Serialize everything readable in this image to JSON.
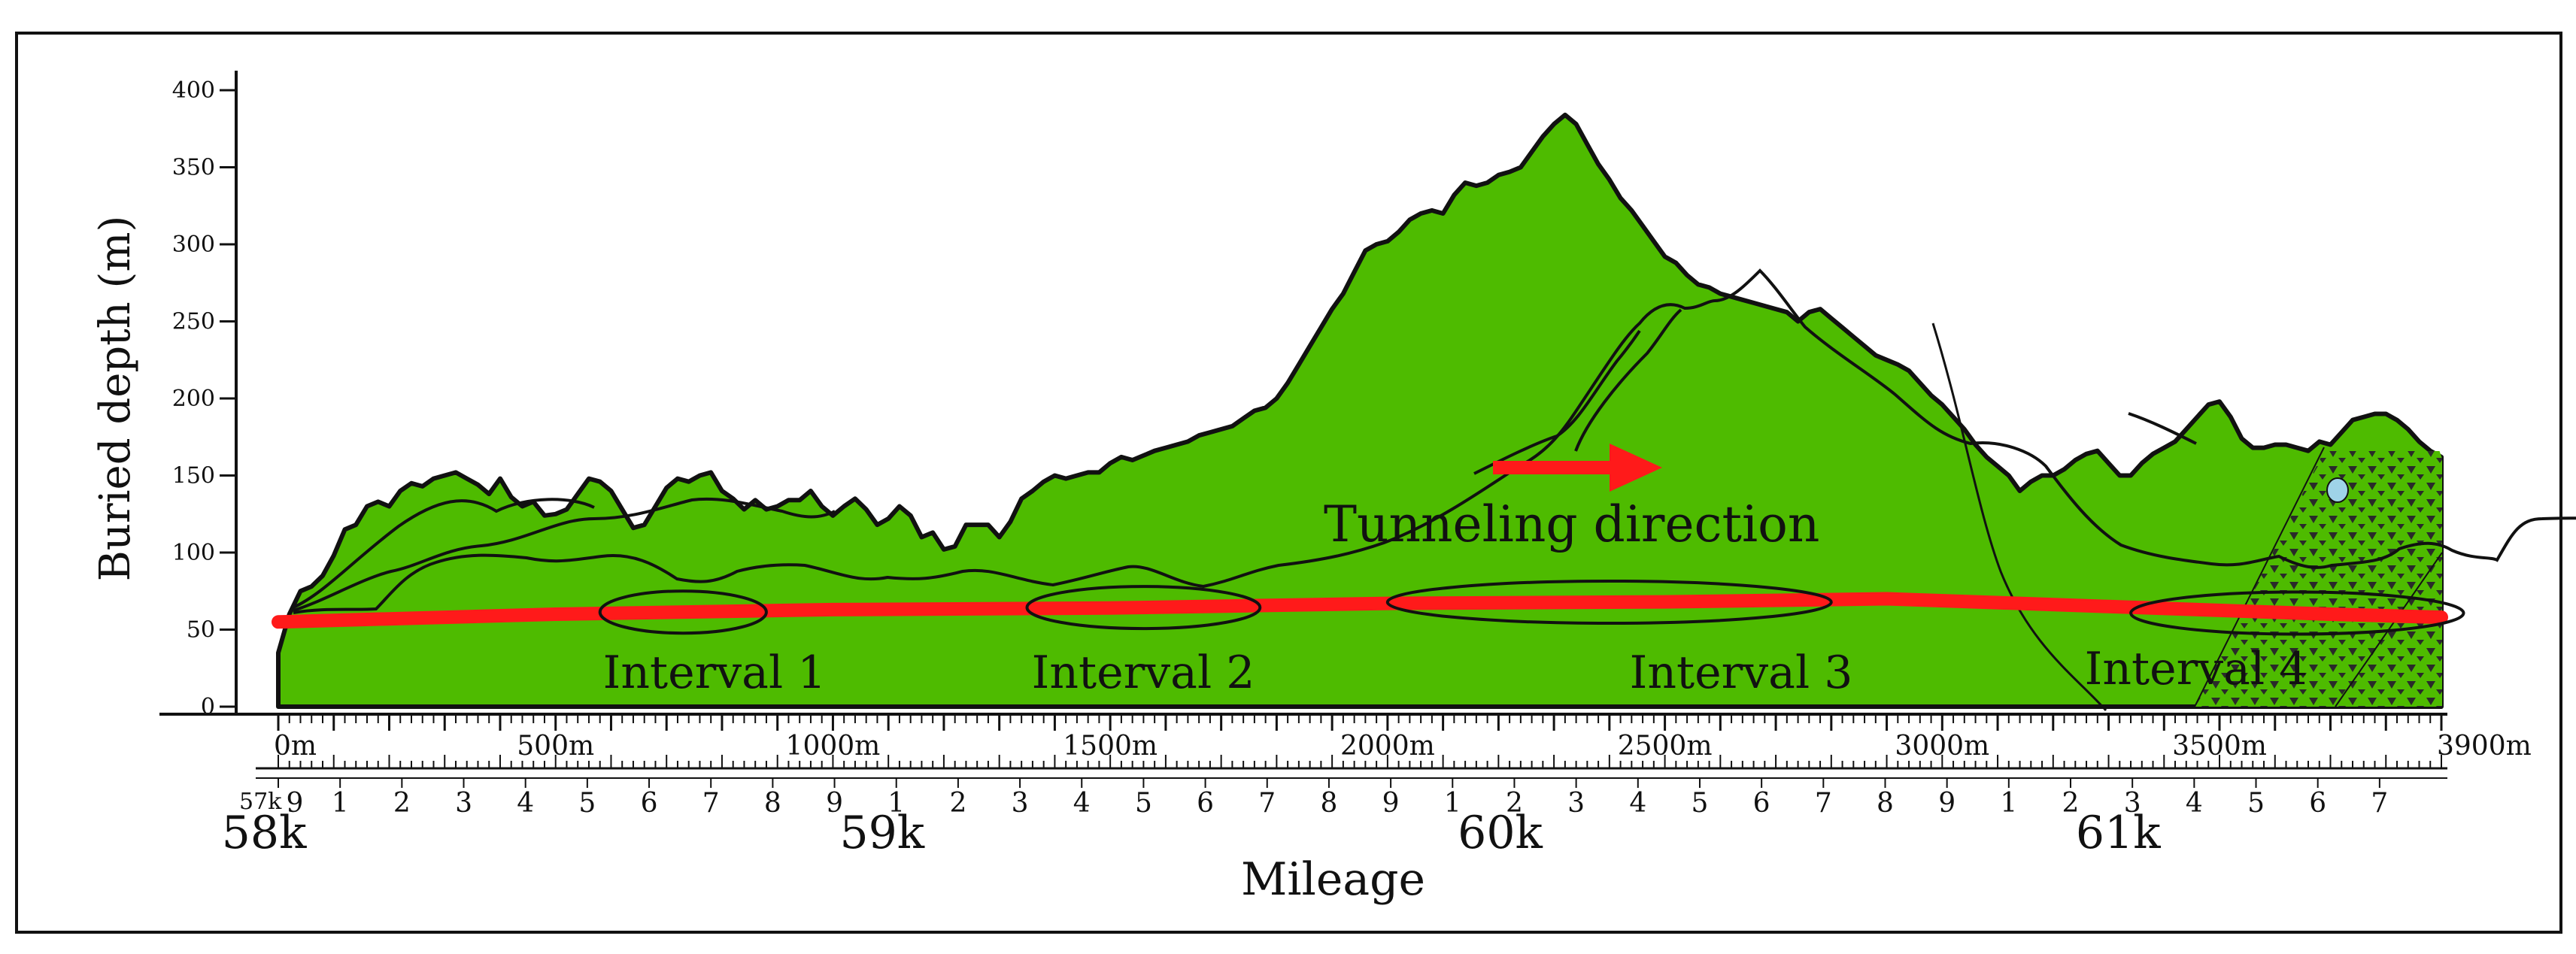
{
  "y_axis": {
    "label": "Buried depth (m)",
    "ticks": [
      {
        "value": 0,
        "label": "0"
      },
      {
        "value": 50,
        "label": "50"
      },
      {
        "value": 100,
        "label": "100"
      },
      {
        "value": 150,
        "label": "150"
      },
      {
        "value": 200,
        "label": "200"
      },
      {
        "value": 250,
        "label": "250"
      },
      {
        "value": 300,
        "label": "300"
      },
      {
        "value": 350,
        "label": "350"
      },
      {
        "value": 400,
        "label": "400"
      }
    ]
  },
  "x_axis": {
    "ticks": [
      {
        "value": 0,
        "label": "0m"
      },
      {
        "value": 500,
        "label": "500m"
      },
      {
        "value": 1000,
        "label": "1000m"
      },
      {
        "value": 1500,
        "label": "1500m"
      },
      {
        "value": 2000,
        "label": "2000m"
      },
      {
        "value": 2500,
        "label": "2500m"
      },
      {
        "value": 3000,
        "label": "3000m"
      },
      {
        "value": 3500,
        "label": "3500m"
      },
      {
        "value": 3900,
        "label": "3900m"
      }
    ]
  },
  "mileage": {
    "label": "Mileage",
    "start_label": "57k",
    "km_labels": [
      "58k",
      "59k",
      "60k",
      "61k"
    ],
    "digits": [
      "9",
      "1",
      "2",
      "3",
      "4",
      "5",
      "6",
      "7",
      "8",
      "9",
      "1",
      "2",
      "3",
      "4",
      "5",
      "6",
      "7",
      "8",
      "9",
      "1",
      "2",
      "3",
      "4",
      "5",
      "6",
      "7",
      "8",
      "9",
      "1",
      "2",
      "3",
      "4",
      "5",
      "6",
      "7"
    ]
  },
  "intervals": [
    {
      "label": "Interval 1",
      "from_m": 580,
      "to_m": 880
    },
    {
      "label": "Interval 2",
      "from_m": 1350,
      "to_m": 1770
    },
    {
      "label": "Interval 3",
      "from_m": 2000,
      "to_m": 2800
    },
    {
      "label": "Interval 4",
      "from_m": 3340,
      "to_m": 3940
    }
  ],
  "annotation": {
    "label": "Tunneling direction"
  },
  "colors": {
    "rock": "#4ebb00",
    "tunnel": "#ff1a1a",
    "arrow": "#ff1a1a",
    "water": "#9fd3e8",
    "outline": "#111111"
  },
  "terrain_profile": [
    [
      0,
      35
    ],
    [
      20,
      60
    ],
    [
      40,
      75
    ],
    [
      60,
      78
    ],
    [
      80,
      85
    ],
    [
      100,
      98
    ],
    [
      120,
      115
    ],
    [
      140,
      118
    ],
    [
      160,
      130
    ],
    [
      180,
      133
    ],
    [
      200,
      130
    ],
    [
      220,
      140
    ],
    [
      240,
      145
    ],
    [
      260,
      143
    ],
    [
      280,
      148
    ],
    [
      300,
      150
    ],
    [
      320,
      152
    ],
    [
      340,
      148
    ],
    [
      360,
      144
    ],
    [
      380,
      138
    ],
    [
      400,
      148
    ],
    [
      420,
      136
    ],
    [
      440,
      130
    ],
    [
      460,
      133
    ],
    [
      480,
      124
    ],
    [
      500,
      125
    ],
    [
      520,
      128
    ],
    [
      540,
      138
    ],
    [
      560,
      148
    ],
    [
      580,
      146
    ],
    [
      600,
      140
    ],
    [
      620,
      128
    ],
    [
      640,
      116
    ],
    [
      660,
      118
    ],
    [
      680,
      130
    ],
    [
      700,
      142
    ],
    [
      720,
      148
    ],
    [
      740,
      146
    ],
    [
      760,
      150
    ],
    [
      780,
      152
    ],
    [
      800,
      140
    ],
    [
      820,
      135
    ],
    [
      840,
      128
    ],
    [
      860,
      134
    ],
    [
      880,
      128
    ],
    [
      900,
      130
    ],
    [
      920,
      134
    ],
    [
      940,
      134
    ],
    [
      960,
      140
    ],
    [
      980,
      130
    ],
    [
      1000,
      124
    ],
    [
      1020,
      130
    ],
    [
      1040,
      135
    ],
    [
      1060,
      128
    ],
    [
      1080,
      118
    ],
    [
      1100,
      122
    ],
    [
      1120,
      130
    ],
    [
      1140,
      124
    ],
    [
      1160,
      110
    ],
    [
      1180,
      113
    ],
    [
      1200,
      102
    ],
    [
      1220,
      104
    ],
    [
      1240,
      118
    ],
    [
      1260,
      118
    ],
    [
      1280,
      118
    ],
    [
      1300,
      110
    ],
    [
      1320,
      120
    ],
    [
      1340,
      135
    ],
    [
      1360,
      140
    ],
    [
      1380,
      146
    ],
    [
      1400,
      150
    ],
    [
      1420,
      148
    ],
    [
      1440,
      150
    ],
    [
      1460,
      152
    ],
    [
      1480,
      152
    ],
    [
      1500,
      158
    ],
    [
      1520,
      162
    ],
    [
      1540,
      160
    ],
    [
      1560,
      163
    ],
    [
      1580,
      166
    ],
    [
      1600,
      168
    ],
    [
      1620,
      170
    ],
    [
      1640,
      172
    ],
    [
      1660,
      176
    ],
    [
      1680,
      178
    ],
    [
      1700,
      180
    ],
    [
      1720,
      182
    ],
    [
      1740,
      187
    ],
    [
      1760,
      192
    ],
    [
      1780,
      194
    ],
    [
      1800,
      200
    ],
    [
      1820,
      210
    ],
    [
      1840,
      222
    ],
    [
      1860,
      234
    ],
    [
      1880,
      246
    ],
    [
      1900,
      258
    ],
    [
      1920,
      268
    ],
    [
      1940,
      282
    ],
    [
      1960,
      296
    ],
    [
      1980,
      300
    ],
    [
      2000,
      302
    ],
    [
      2020,
      308
    ],
    [
      2040,
      316
    ],
    [
      2060,
      320
    ],
    [
      2080,
      322
    ],
    [
      2100,
      320
    ],
    [
      2120,
      332
    ],
    [
      2140,
      340
    ],
    [
      2160,
      338
    ],
    [
      2180,
      340
    ],
    [
      2200,
      345
    ],
    [
      2220,
      347
    ],
    [
      2240,
      350
    ],
    [
      2260,
      360
    ],
    [
      2280,
      370
    ],
    [
      2300,
      378
    ],
    [
      2320,
      384
    ],
    [
      2340,
      378
    ],
    [
      2360,
      365
    ],
    [
      2380,
      352
    ],
    [
      2400,
      342
    ],
    [
      2420,
      330
    ],
    [
      2440,
      322
    ],
    [
      2460,
      312
    ],
    [
      2480,
      302
    ],
    [
      2500,
      292
    ],
    [
      2520,
      288
    ],
    [
      2540,
      280
    ],
    [
      2560,
      274
    ],
    [
      2580,
      272
    ],
    [
      2600,
      268
    ],
    [
      2620,
      266
    ],
    [
      2640,
      264
    ],
    [
      2660,
      262
    ],
    [
      2680,
      260
    ],
    [
      2700,
      258
    ],
    [
      2720,
      256
    ],
    [
      2740,
      250
    ],
    [
      2760,
      256
    ],
    [
      2780,
      258
    ],
    [
      2800,
      252
    ],
    [
      2820,
      246
    ],
    [
      2840,
      240
    ],
    [
      2860,
      234
    ],
    [
      2880,
      228
    ],
    [
      2900,
      225
    ],
    [
      2920,
      222
    ],
    [
      2940,
      218
    ],
    [
      2960,
      210
    ],
    [
      2980,
      202
    ],
    [
      3000,
      196
    ],
    [
      3020,
      188
    ],
    [
      3040,
      180
    ],
    [
      3060,
      170
    ],
    [
      3080,
      162
    ],
    [
      3100,
      156
    ],
    [
      3120,
      150
    ],
    [
      3140,
      140
    ],
    [
      3160,
      146
    ],
    [
      3180,
      150
    ],
    [
      3200,
      150
    ],
    [
      3220,
      154
    ],
    [
      3240,
      160
    ],
    [
      3260,
      164
    ],
    [
      3280,
      166
    ],
    [
      3300,
      158
    ],
    [
      3320,
      150
    ],
    [
      3340,
      150
    ],
    [
      3360,
      158
    ],
    [
      3380,
      164
    ],
    [
      3400,
      168
    ],
    [
      3420,
      172
    ],
    [
      3440,
      180
    ],
    [
      3460,
      188
    ],
    [
      3480,
      196
    ],
    [
      3500,
      198
    ],
    [
      3520,
      188
    ],
    [
      3540,
      174
    ],
    [
      3560,
      168
    ],
    [
      3580,
      168
    ],
    [
      3600,
      170
    ],
    [
      3620,
      170
    ],
    [
      3640,
      168
    ],
    [
      3660,
      166
    ],
    [
      3680,
      172
    ],
    [
      3700,
      170
    ],
    [
      3720,
      178
    ],
    [
      3740,
      186
    ],
    [
      3760,
      188
    ],
    [
      3780,
      190
    ],
    [
      3800,
      190
    ],
    [
      3820,
      186
    ],
    [
      3840,
      180
    ],
    [
      3860,
      172
    ],
    [
      3880,
      166
    ],
    [
      3900,
      162
    ]
  ],
  "tunnel_profile": [
    [
      0,
      55
    ],
    [
      500,
      60
    ],
    [
      1000,
      63
    ],
    [
      1500,
      64
    ],
    [
      2000,
      67
    ],
    [
      2500,
      68
    ],
    [
      2900,
      70
    ],
    [
      3300,
      65
    ],
    [
      3700,
      60
    ],
    [
      3900,
      58
    ]
  ]
}
